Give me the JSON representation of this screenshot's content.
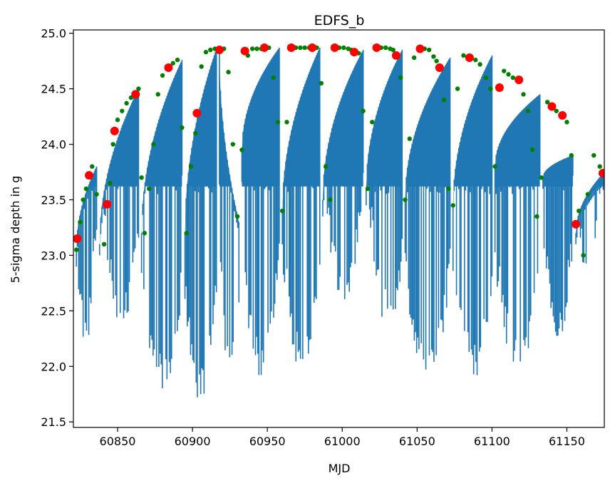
{
  "chart_data": {
    "type": "line",
    "title": "EDFS_b",
    "xlabel": "MJD",
    "ylabel": "5-sigma depth in g",
    "xlim": [
      60820.5,
      61175
    ],
    "ylim": [
      21.45,
      25.03
    ],
    "xticks": [
      60850,
      60900,
      60950,
      61000,
      61050,
      61100,
      61150
    ],
    "yticks": [
      21.5,
      22.0,
      22.5,
      23.0,
      23.5,
      24.0,
      24.5,
      25.0
    ],
    "xtick_labels": [
      "60850",
      "60900",
      "60950",
      "61000",
      "61050",
      "61100",
      "61150"
    ],
    "ytick_labels": [
      "21.5",
      "22.0",
      "22.5",
      "23.0",
      "23.5",
      "24.0",
      "24.5",
      "25.0"
    ],
    "grid": false,
    "colors": {
      "fill": "#1f77b4",
      "green_points": "#008000",
      "red_points": "#ff0000"
    },
    "series": [
      {
        "style": "red-markers",
        "x": [
          60823,
          60831,
          60843,
          60848,
          60862,
          60884,
          60903,
          60918,
          60935,
          60948,
          60966,
          60980,
          60995,
          61008,
          61023,
          61036,
          61052,
          61065,
          61085,
          61105,
          61118,
          61140,
          61147,
          61156,
          61174
        ],
        "y": [
          23.15,
          23.72,
          23.46,
          24.12,
          24.45,
          24.69,
          24.28,
          24.85,
          24.84,
          24.87,
          24.87,
          24.87,
          24.87,
          24.83,
          24.87,
          24.8,
          24.86,
          24.69,
          24.78,
          24.51,
          24.58,
          24.34,
          24.26,
          23.28,
          23.74
        ]
      },
      {
        "style": "green-markers",
        "x": [
          60822.5,
          60825,
          60827,
          60829,
          60833,
          60836,
          60841,
          60845,
          60847,
          60850,
          60853,
          60856,
          60859,
          60864,
          60866,
          60868,
          60871,
          60874,
          60877,
          60880,
          60883,
          60887,
          60890,
          60893,
          60896,
          60899,
          60902,
          60906,
          60909,
          60912,
          60915,
          60921,
          60924,
          60927,
          60930,
          60933,
          60937,
          60940,
          60943,
          60946,
          60951,
          60954,
          60957,
          60960,
          60963,
          60969,
          60972,
          60975,
          60978,
          60983,
          60986,
          60989,
          60992,
          60998,
          61001,
          61004,
          61006,
          61011,
          61014,
          61017,
          61020,
          61026,
          61029,
          61032,
          61034,
          61039,
          61042,
          61045,
          61048,
          61055,
          61058,
          61061,
          61063,
          61068,
          61071,
          61074,
          61077,
          61081,
          61089,
          61092,
          61096,
          61099,
          61102,
          61108,
          61111,
          61114,
          61117,
          61121,
          61124,
          61127,
          61130,
          61133,
          61137,
          61143,
          61150,
          61153,
          61158,
          61161,
          61164,
          61168,
          61172
        ],
        "y": [
          23.05,
          23.3,
          23.5,
          23.6,
          23.8,
          23.55,
          23.1,
          23.65,
          24.0,
          24.22,
          24.3,
          24.37,
          24.42,
          24.5,
          23.7,
          23.2,
          23.6,
          24.0,
          24.45,
          24.62,
          24.68,
          24.73,
          24.76,
          24.15,
          23.2,
          23.8,
          24.1,
          24.7,
          24.83,
          24.85,
          24.86,
          24.86,
          24.65,
          24.0,
          23.35,
          23.95,
          24.8,
          24.86,
          24.86,
          24.86,
          24.87,
          24.6,
          24.2,
          23.4,
          24.2,
          24.87,
          24.87,
          24.87,
          24.87,
          24.87,
          24.55,
          23.8,
          23.5,
          24.87,
          24.87,
          24.86,
          24.85,
          24.82,
          24.3,
          23.6,
          24.2,
          24.87,
          24.87,
          24.86,
          24.85,
          24.6,
          23.5,
          24.05,
          24.78,
          24.86,
          24.85,
          24.79,
          24.75,
          24.4,
          23.6,
          23.45,
          24.5,
          24.8,
          24.76,
          24.72,
          24.6,
          24.5,
          23.8,
          24.66,
          24.63,
          24.6,
          24.58,
          24.45,
          24.3,
          23.95,
          23.35,
          23.7,
          24.38,
          24.3,
          24.2,
          23.9,
          23.4,
          23.0,
          23.55,
          23.9,
          23.8
        ]
      },
      {
        "style": "blue-fill",
        "description_free": true,
        "segments": [
          {
            "x": [
              60822.5,
              60836
            ],
            "top": [
              23.05,
              23.8
            ],
            "bottom": [
              22.0,
              22.3
            ]
          },
          {
            "x": [
              60838,
              60864
            ],
            "top": [
              23.1,
              24.5
            ],
            "bottom": [
              22.6,
              22.1
            ]
          },
          {
            "x": [
              60866,
              60893
            ],
            "top": [
              23.2,
              24.76
            ],
            "bottom": [
              21.8,
              21.7
            ]
          },
          {
            "x": [
              60895,
              60916
            ],
            "top": [
              23.2,
              24.86
            ],
            "bottom": [
              21.62,
              21.75
            ]
          },
          {
            "x": [
              60918,
              60931
            ],
            "top": [
              24.86,
              23.3
            ],
            "bottom": [
              22.0,
              21.63
            ]
          },
          {
            "x": [
              60933,
              60958
            ],
            "top": [
              23.95,
              24.87
            ],
            "bottom": [
              21.9,
              21.9
            ]
          },
          {
            "x": [
              60960,
              60985
            ],
            "top": [
              23.4,
              24.87
            ],
            "bottom": [
              22.0,
              21.85
            ]
          },
          {
            "x": [
              60987,
              61014
            ],
            "top": [
              23.5,
              24.85
            ],
            "bottom": [
              22.6,
              22.5
            ]
          },
          {
            "x": [
              61016,
              61040
            ],
            "top": [
              23.6,
              24.85
            ],
            "bottom": [
              22.8,
              21.95
            ]
          },
          {
            "x": [
              61042,
              61072
            ],
            "top": [
              23.5,
              24.78
            ],
            "bottom": [
              21.8,
              21.83
            ]
          },
          {
            "x": [
              61074,
              61100
            ],
            "top": [
              23.45,
              24.8
            ],
            "bottom": [
              21.95,
              21.8
            ]
          },
          {
            "x": [
              61102,
              61132
            ],
            "top": [
              23.8,
              24.45
            ],
            "bottom": [
              21.95,
              21.9
            ]
          },
          {
            "x": [
              61134,
              61154
            ],
            "top": [
              23.7,
              23.9
            ],
            "bottom": [
              22.25,
              22.1
            ]
          },
          {
            "x": [
              61156,
              61175
            ],
            "top": [
              23.2,
              23.75
            ],
            "bottom": [
              22.4,
              23.3
            ]
          }
        ]
      }
    ]
  }
}
